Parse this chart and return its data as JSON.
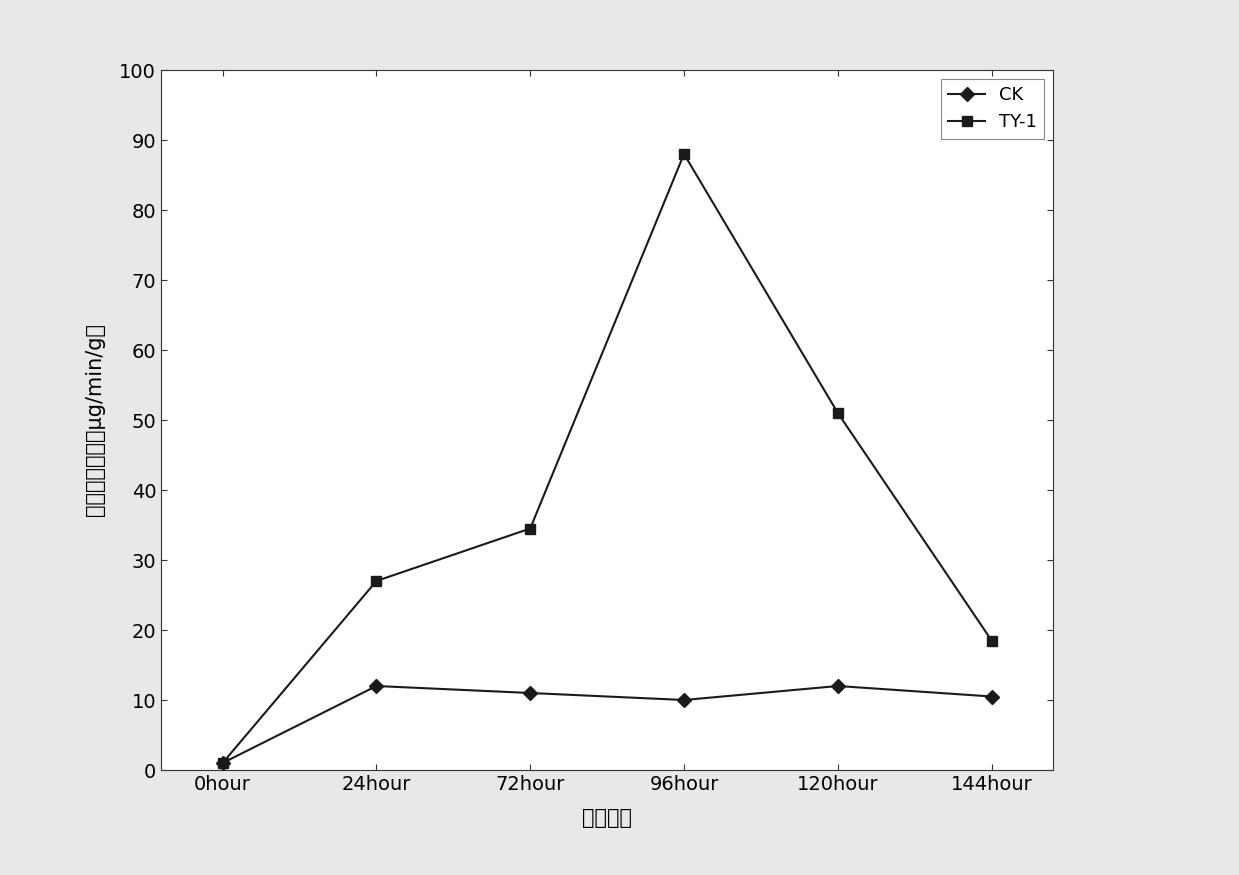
{
  "x_labels": [
    "0hour",
    "24hour",
    "72hour",
    "96hour",
    "120hour",
    "144hour"
  ],
  "x_values": [
    0,
    1,
    2,
    3,
    4,
    5
  ],
  "ck_values": [
    1,
    12,
    11,
    10,
    12,
    10.5
  ],
  "ty1_values": [
    1,
    27,
    34.5,
    88,
    51,
    18.5
  ],
  "ck_label": "CK",
  "ty1_label": "TY-1",
  "xlabel": "发酵时间",
  "ylabel": "纤维素酶含量（μg/min/g）",
  "ylim": [
    0,
    100
  ],
  "yticks": [
    0,
    10,
    20,
    30,
    40,
    50,
    60,
    70,
    80,
    90,
    100
  ],
  "line_color": "#1a1a1a",
  "marker_ck": "D",
  "marker_ty1": "s",
  "markersize": 7,
  "linewidth": 1.5,
  "background_color": "#ffffff",
  "outer_bg": "#e8e8e8",
  "legend_loc": "upper right",
  "label_fontsize": 15,
  "tick_fontsize": 14,
  "legend_fontsize": 13
}
